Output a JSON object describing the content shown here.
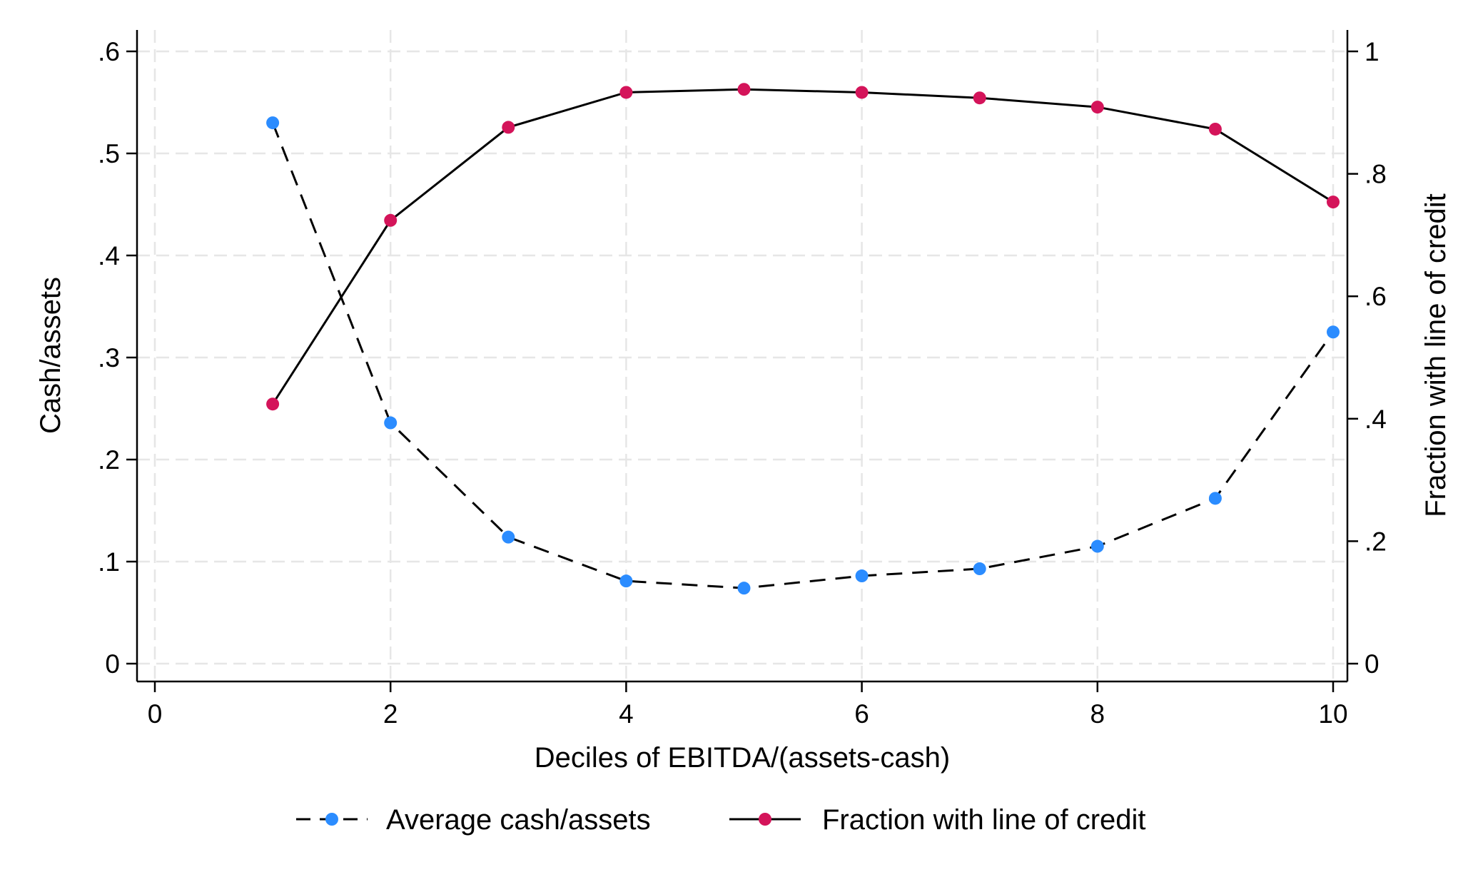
{
  "chart_data": {
    "type": "line",
    "title": "",
    "xlabel": "Deciles of EBITDA/(assets-cash)",
    "ylabel_left": "Cash/assets",
    "ylabel_right": "Fraction with line of credit",
    "xlim": [
      0,
      10
    ],
    "ylim_left": [
      0,
      0.6
    ],
    "ylim_right": [
      0,
      1
    ],
    "x_ticks": [
      0,
      2,
      4,
      6,
      8,
      10
    ],
    "x_tick_labels": [
      "0",
      "2",
      "4",
      "6",
      "8",
      "10"
    ],
    "y_left_ticks": [
      0,
      0.1,
      0.2,
      0.3,
      0.4,
      0.5,
      0.6
    ],
    "y_left_tick_labels": [
      "0",
      ".1",
      ".2",
      ".3",
      ".4",
      ".5",
      ".6"
    ],
    "y_right_ticks": [
      0,
      0.2,
      0.4,
      0.6,
      0.8,
      1
    ],
    "y_right_tick_labels": [
      "0",
      ".2",
      ".4",
      ".6",
      ".8",
      "1"
    ],
    "grid": true,
    "legend_position": "bottom",
    "x": [
      1,
      2,
      3,
      4,
      5,
      6,
      7,
      8,
      9,
      10
    ],
    "series": [
      {
        "name": "Average cash/assets",
        "axis": "left",
        "color": "#2b8cff",
        "line_color": "#000000",
        "line_style": "dashed",
        "values": [
          0.53,
          0.236,
          0.124,
          0.081,
          0.074,
          0.086,
          0.093,
          0.115,
          0.162,
          0.325
        ]
      },
      {
        "name": "Fraction with line of credit",
        "axis": "right",
        "color": "#d4145a",
        "line_color": "#000000",
        "line_style": "solid",
        "values": [
          0.424,
          0.724,
          0.876,
          0.933,
          0.938,
          0.933,
          0.924,
          0.909,
          0.873,
          0.754
        ]
      }
    ]
  }
}
